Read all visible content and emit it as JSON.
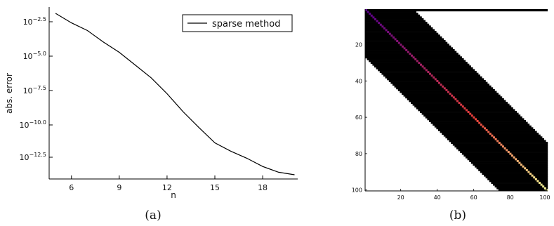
{
  "chart_data": [
    {
      "type": "line",
      "panel_caption": "(a)",
      "xlabel": "n",
      "ylabel": "abs. error",
      "y_scale": "log10",
      "x_ticks": [
        6,
        9,
        12,
        15,
        18
      ],
      "y_ticks": [
        {
          "value": -2.5,
          "base": "10",
          "exp": "−2.5"
        },
        {
          "value": -5.0,
          "base": "10",
          "exp": "−5.0"
        },
        {
          "value": -7.5,
          "base": "10",
          "exp": "−7.5"
        },
        {
          "value": -10.0,
          "base": "10",
          "exp": "−10.0"
        },
        {
          "value": -12.5,
          "base": "10",
          "exp": "−12.5"
        }
      ],
      "xlim": [
        4.6,
        20.2
      ],
      "ylim_log10": [
        -14.1,
        -1.2
      ],
      "legend_position": "top-right",
      "grid": false,
      "series": [
        {
          "name": "sparse method",
          "color": "#000000",
          "x": [
            5,
            6,
            7,
            8,
            9,
            10,
            11,
            12,
            13,
            14,
            15,
            16,
            17,
            18,
            19,
            20
          ],
          "log10_y": [
            -1.5,
            -2.4,
            -3.1,
            -4.1,
            -5.0,
            -6.1,
            -7.2,
            -8.5,
            -9.8,
            -11.4,
            -12.9,
            -13.4,
            -14.1,
            -14.9,
            -15.4,
            -15.7
          ]
        }
      ]
    },
    {
      "type": "heatmap",
      "panel_caption": "(b)",
      "matrix_size": 100,
      "upper_bandwidth": 26,
      "lower_bandwidth": 26,
      "first_row_full": true,
      "diagonal_color_low": "#5a008c",
      "diagonal_color_mid": "#e8403a",
      "diagonal_color_high": "#fbfc9a",
      "band_color": "#000000",
      "zero_color": "#ffffff",
      "x_ticks": [
        20,
        40,
        60,
        80,
        100
      ],
      "y_ticks": [
        20,
        40,
        60,
        80,
        100
      ]
    }
  ]
}
